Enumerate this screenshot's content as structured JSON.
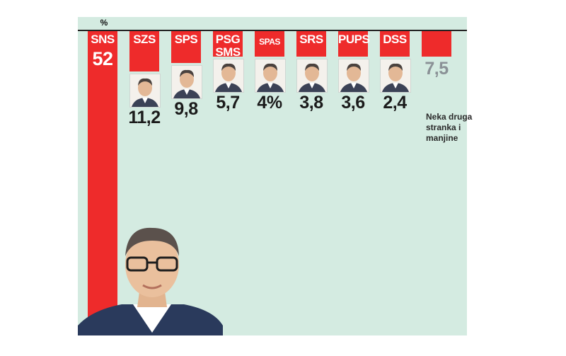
{
  "chart_data": {
    "type": "bar",
    "unit_label": "%",
    "categories": [
      "SNS",
      "SZS",
      "SPS",
      "PSG SMS",
      "SPAS",
      "SRS",
      "PUPS",
      "DSS",
      ""
    ],
    "value_labels": [
      "52",
      "11,2",
      "9,8",
      "5,7",
      "4%",
      "3,8",
      "3,6",
      "2,4",
      "7,5"
    ],
    "values": [
      52,
      11.2,
      9.8,
      5.7,
      4,
      3.8,
      3.6,
      2.4,
      7.5
    ],
    "other_note": "Neka druga stranka i manjine",
    "colors": {
      "bar": "#ee2b2b",
      "background": "#d4ebe1"
    },
    "icons": [
      "person-photo-icon",
      "leader-portrait-icon"
    ]
  }
}
